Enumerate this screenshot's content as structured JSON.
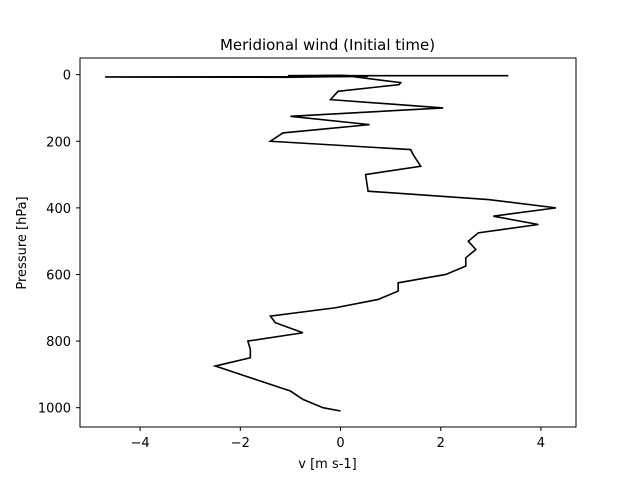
{
  "chart_data": {
    "type": "line",
    "title": "Meridional wind (Initial time)",
    "xlabel": "v [m s-1]",
    "ylabel": "Pressure [hPa]",
    "xlim": [
      -5.2,
      4.7
    ],
    "ylim": [
      1058,
      -50
    ],
    "y_inverted": true,
    "xticks": [
      -4,
      -2,
      0,
      2,
      4
    ],
    "xtick_labels": [
      "−4",
      "−2",
      "0",
      "2",
      "4"
    ],
    "yticks": [
      0,
      200,
      400,
      600,
      800,
      1000
    ],
    "ytick_labels": [
      "0",
      "200",
      "400",
      "600",
      "800",
      "1000"
    ],
    "grid": false,
    "line_color": "#000000",
    "series": [
      {
        "x": [
          3.35,
          -1.05,
          0.0,
          0.55,
          -1.05,
          -4.7,
          0.0,
          0.15,
          1.2,
          1.17,
          -0.05,
          -0.2,
          2.05,
          -1.0,
          0.58,
          -1.15,
          -1.4,
          1.4,
          1.45,
          1.6,
          0.5,
          0.55,
          2.95,
          4.3,
          3.05,
          3.95,
          2.75,
          2.55,
          2.7,
          2.5,
          2.5,
          2.1,
          1.15,
          1.15,
          0.75,
          -0.1,
          -1.4,
          -1.3,
          -0.75,
          -1.85,
          -1.8,
          -1.8,
          -2.5,
          -2.0,
          -1.0,
          -0.75,
          -0.35,
          0.0
        ],
        "y": [
          3,
          3,
          2,
          5,
          8,
          7,
          6,
          4,
          24,
          30,
          50,
          75,
          100,
          125,
          150,
          175,
          200,
          225,
          240,
          275,
          300,
          350,
          375,
          400,
          425,
          450,
          475,
          500,
          525,
          550,
          575,
          600,
          625,
          650,
          675,
          700,
          725,
          745,
          775,
          800,
          825,
          850,
          875,
          900,
          950,
          975,
          1000,
          1010
        ]
      }
    ]
  }
}
